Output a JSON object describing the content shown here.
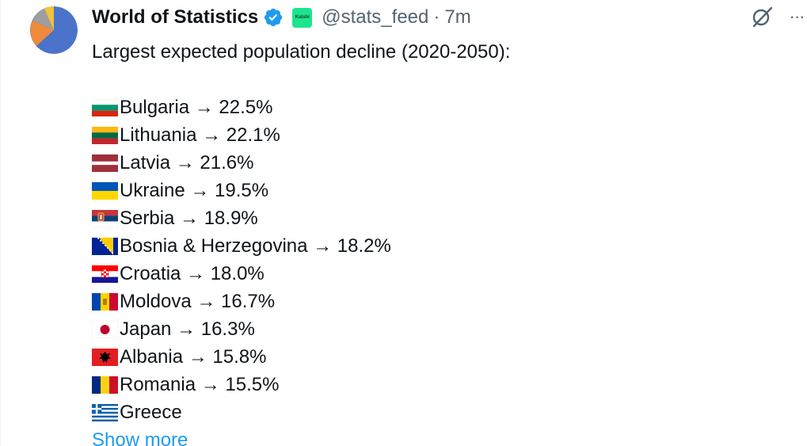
{
  "author": {
    "display_name": "World of Statistics",
    "handle": "@stats_feed",
    "separator": "·",
    "time": "7m",
    "affiliate_badge_text": "Kalshi",
    "avatar_icon": "pie-chart-avatar",
    "verified_icon": "verified-badge-icon",
    "colors": {
      "verified": "#1d9bf0",
      "affiliate": "#1de58d"
    }
  },
  "actions": {
    "grok_icon": "grok-icon",
    "more_icon": "more-icon",
    "more_label": "···"
  },
  "post": {
    "intro": "Largest expected population decline (2020-2050):",
    "items": [
      {
        "flag": "bulgaria-flag",
        "text": "Bulgaria → 22.5%"
      },
      {
        "flag": "lithuania-flag",
        "text": "Lithuania → 22.1%"
      },
      {
        "flag": "latvia-flag",
        "text": "Latvia → 21.6%"
      },
      {
        "flag": "ukraine-flag",
        "text": "Ukraine → 19.5%"
      },
      {
        "flag": "serbia-flag",
        "text": "Serbia → 18.9%"
      },
      {
        "flag": "bosnia-flag",
        "text": "Bosnia & Herzegovina → 18.2%"
      },
      {
        "flag": "croatia-flag",
        "text": "Croatia → 18.0%"
      },
      {
        "flag": "moldova-flag",
        "text": "Moldova → 16.7%"
      },
      {
        "flag": "japan-flag",
        "text": "Japan → 16.3%"
      },
      {
        "flag": "albania-flag",
        "text": "Albania → 15.8%"
      },
      {
        "flag": "romania-flag",
        "text": "Romania → 15.5%"
      },
      {
        "flag": "greece-flag",
        "text": "Greece"
      }
    ],
    "show_more": "Show more",
    "link_color": "#1d9bf0"
  }
}
